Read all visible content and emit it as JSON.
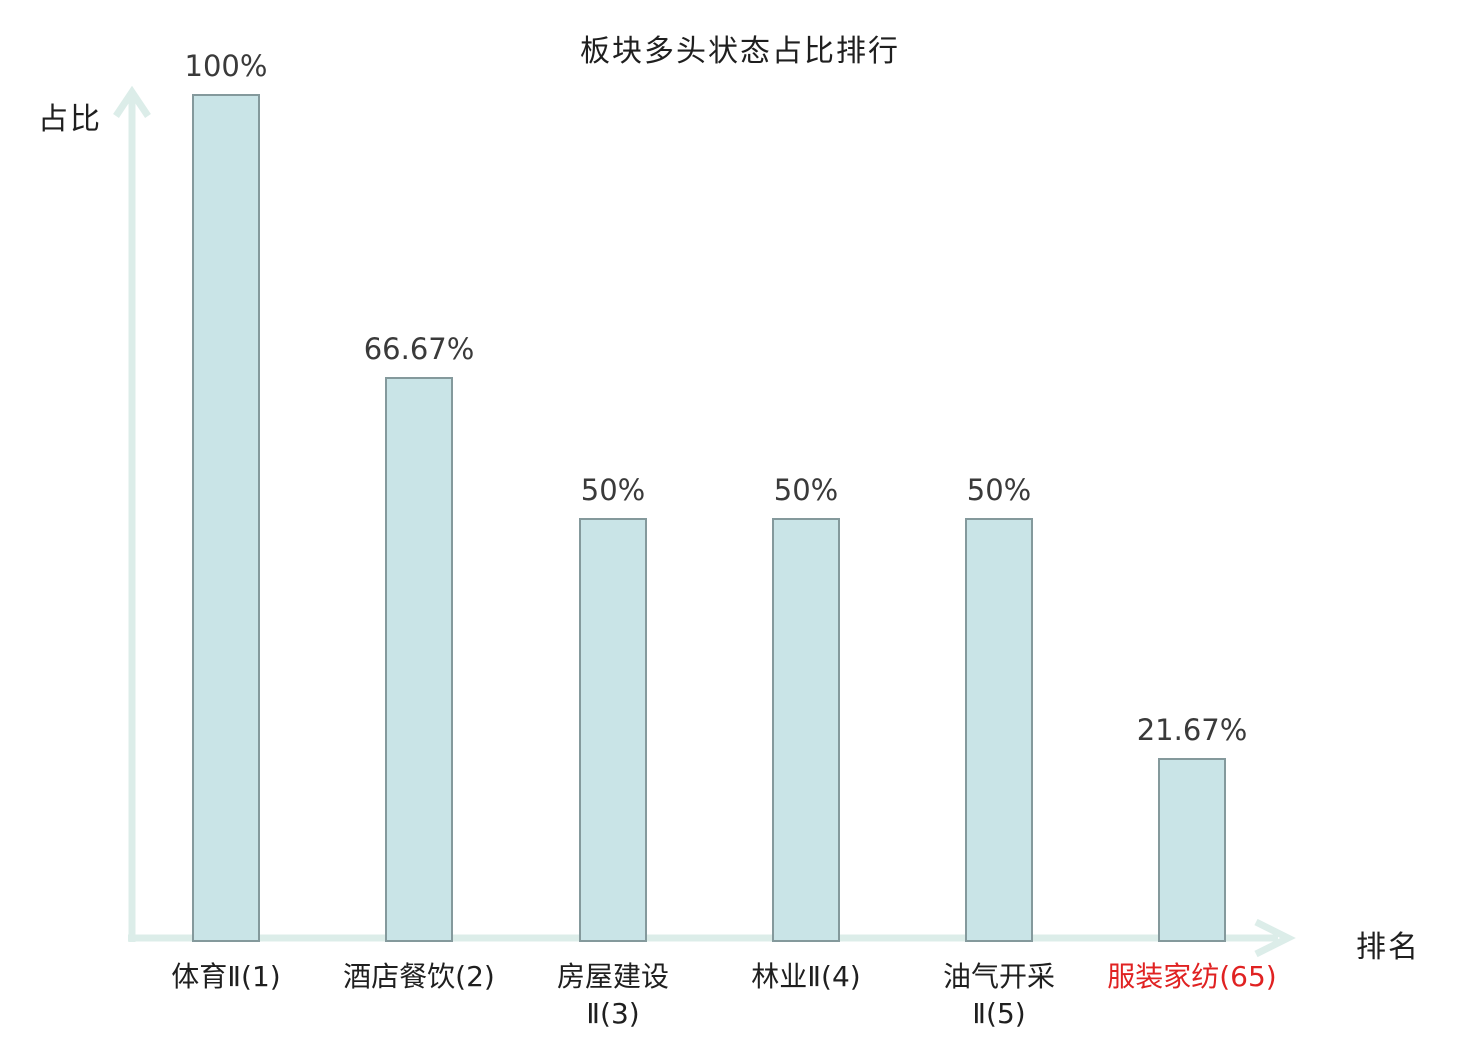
{
  "chart_data": {
    "type": "bar",
    "title": "板块多头状态占比排行",
    "ylabel": "占比",
    "xlabel": "排名",
    "ylim": [
      0,
      100
    ],
    "grid": false,
    "legend": null,
    "categories": [
      "体育Ⅱ(1)",
      "酒店餐饮(2)",
      "房屋建设Ⅱ(3)",
      "林业Ⅱ(4)",
      "油气开采Ⅱ(5)",
      "服装家纺(65)"
    ],
    "values": [
      100,
      66.67,
      50,
      50,
      50,
      21.67
    ],
    "items": [
      {
        "category": "体育Ⅱ(1)",
        "category_lines": [
          "体育Ⅱ(1)"
        ],
        "value": 100,
        "value_label": "100%",
        "highlight": false
      },
      {
        "category": "酒店餐饮(2)",
        "category_lines": [
          "酒店餐饮(2)"
        ],
        "value": 66.67,
        "value_label": "66.67%",
        "highlight": false
      },
      {
        "category": "房屋建设Ⅱ(3)",
        "category_lines": [
          "房屋建设",
          "Ⅱ(3)"
        ],
        "value": 50,
        "value_label": "50%",
        "highlight": false
      },
      {
        "category": "林业Ⅱ(4)",
        "category_lines": [
          "林业Ⅱ(4)"
        ],
        "value": 50,
        "value_label": "50%",
        "highlight": false
      },
      {
        "category": "油气开采Ⅱ(5)",
        "category_lines": [
          "油气开采",
          "Ⅱ(5)"
        ],
        "value": 50,
        "value_label": "50%",
        "highlight": false
      },
      {
        "category": "服装家纺(65)",
        "category_lines": [
          "服装家纺(65)"
        ],
        "value": 21.67,
        "value_label": "21.67%",
        "highlight": true
      }
    ],
    "colors": {
      "bar_fill": "#c9e4e7",
      "bar_border": "#84999c",
      "axis": "#dcede9",
      "value_text": "#3a3a3a",
      "category_text": "#1f1f1f",
      "highlight_text": "#e02222",
      "title_text": "#1f1f1f",
      "background": "#ffffff"
    }
  }
}
